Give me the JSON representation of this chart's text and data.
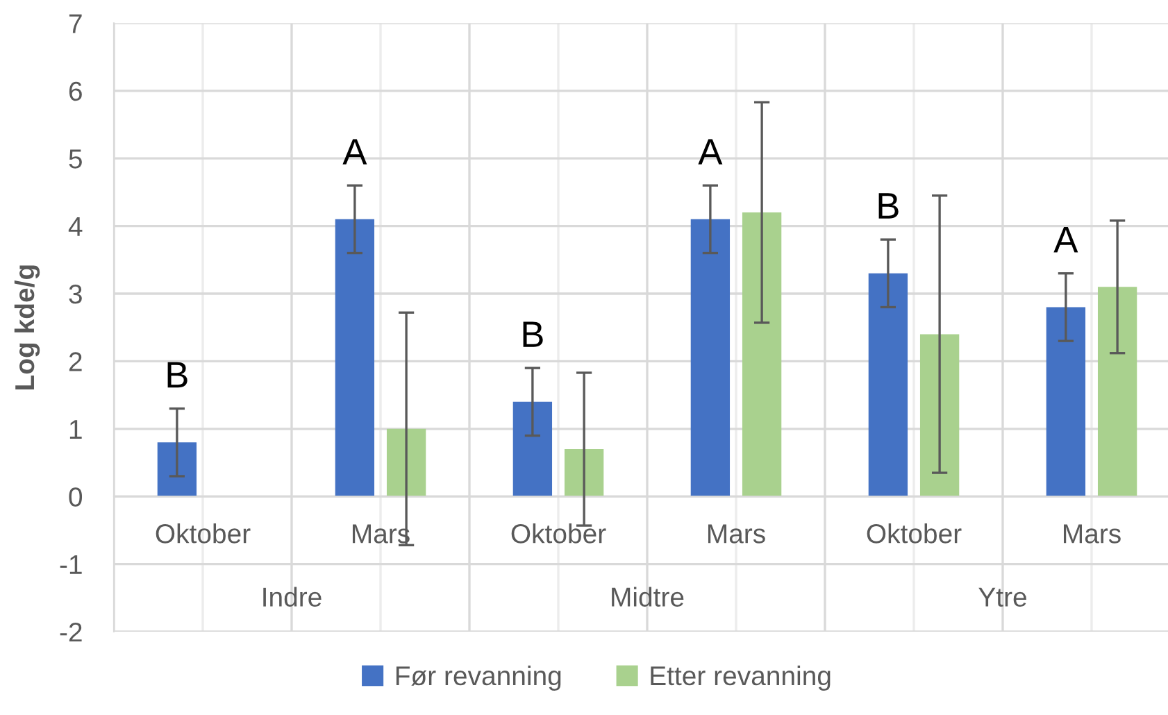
{
  "chart_data": {
    "type": "bar",
    "ylabel": "Log kde/g",
    "categories": [
      "Oktober",
      "Mars",
      "Oktober",
      "Mars",
      "Oktober",
      "Mars"
    ],
    "annotations": [
      "Indre",
      "Midtre",
      "Ytre"
    ],
    "series": [
      {
        "name": "Før revanning",
        "color": "#4472c4",
        "values": [
          0.8,
          4.1,
          1.4,
          4.1,
          3.3,
          2.8
        ],
        "errors": [
          0.5,
          0.5,
          0.5,
          0.5,
          0.5,
          0.5
        ],
        "value_labels": [
          "B",
          "A",
          "B",
          "A",
          "B",
          "A"
        ]
      },
      {
        "name": "Etter revanning",
        "color": "#a9d18e",
        "values": [
          null,
          1.0,
          0.7,
          4.2,
          2.4,
          3.1
        ],
        "errors": [
          null,
          1.72,
          1.13,
          1.63,
          2.05,
          0.98
        ]
      }
    ],
    "ylim": [
      -2,
      7
    ],
    "yticks": [
      -2,
      -1,
      0,
      1,
      2,
      3,
      4,
      5,
      6,
      7
    ],
    "grid": true,
    "legend": "bottom"
  }
}
